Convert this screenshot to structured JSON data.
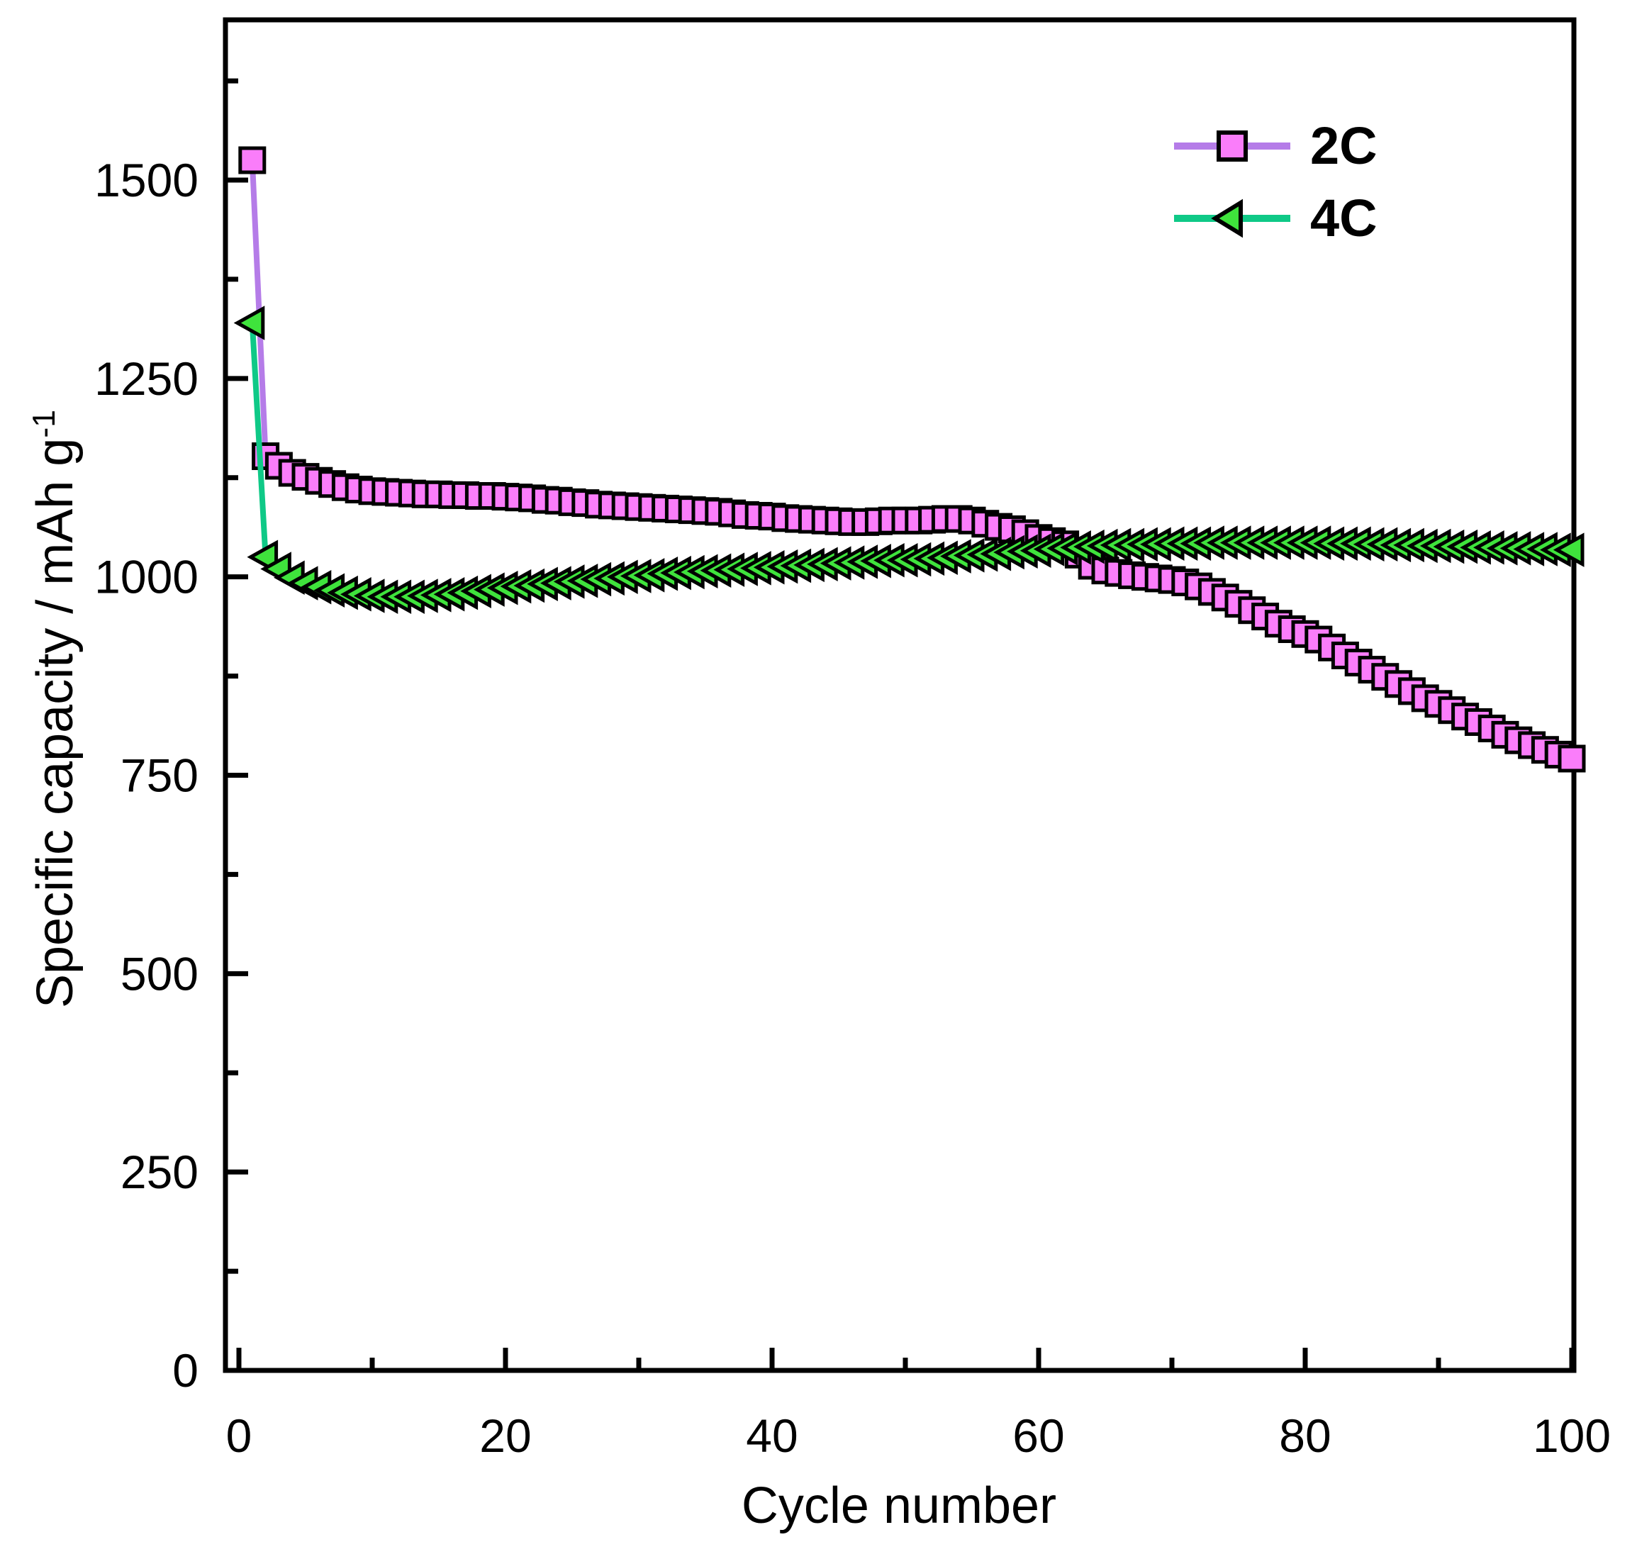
{
  "chart_data": {
    "type": "line",
    "title": "",
    "xlabel": "Cycle number",
    "ylabel_main": "Specific capacity / mAh g",
    "ylabel_exponent": "-1",
    "grid": false,
    "legend_position": "top-right-inside",
    "xlim": [
      0,
      100
    ],
    "ylim": [
      0,
      1702
    ],
    "x_start": 1,
    "x_major_ticks": [
      {
        "v": 0,
        "label": "0"
      },
      {
        "v": 20,
        "label": "20"
      },
      {
        "v": 40,
        "label": "40"
      },
      {
        "v": 60,
        "label": "60"
      },
      {
        "v": 80,
        "label": "80"
      },
      {
        "v": 100,
        "label": "100"
      }
    ],
    "x_minor_ticks": [
      10,
      30,
      50,
      70,
      90
    ],
    "y_major_ticks": [
      {
        "v": 0,
        "label": "0"
      },
      {
        "v": 250,
        "label": "250"
      },
      {
        "v": 500,
        "label": "500"
      },
      {
        "v": 750,
        "label": "750"
      },
      {
        "v": 1000,
        "label": "1000"
      },
      {
        "v": 1250,
        "label": "1250"
      },
      {
        "v": 1500,
        "label": "1500"
      }
    ],
    "y_minor_ticks": [
      125,
      375,
      625,
      875,
      1125,
      1375,
      1625
    ],
    "series": [
      {
        "name": "2C",
        "marker": "square",
        "marker_fill": "#FA7DFA",
        "marker_stroke": "#000000",
        "line_color": "#B57CE8",
        "values": [
          1525,
          1152,
          1140,
          1131,
          1126,
          1121,
          1117,
          1113,
          1110,
          1108,
          1107,
          1106,
          1105,
          1104,
          1104,
          1103,
          1103,
          1102,
          1102,
          1101,
          1100,
          1099,
          1097,
          1096,
          1094,
          1093,
          1091,
          1090,
          1089,
          1088,
          1087,
          1086,
          1085,
          1084,
          1083,
          1082,
          1080,
          1078,
          1077,
          1076,
          1074,
          1073,
          1072,
          1071,
          1070,
          1069,
          1069,
          1070,
          1071,
          1071,
          1071,
          1072,
          1073,
          1073,
          1071,
          1067,
          1063,
          1060,
          1055,
          1049,
          1045,
          1041,
          1028,
          1014,
          1008,
          1005,
          1002,
          1000,
          998,
          996,
          993,
          988,
          981,
          974,
          966,
          958,
          950,
          941,
          934,
          928,
          921,
          911,
          901,
          892,
          883,
          874,
          865,
          856,
          847,
          840,
          832,
          824,
          817,
          809,
          801,
          794,
          788,
          782,
          776,
          771
        ]
      },
      {
        "name": "4C",
        "marker": "triangle-left",
        "marker_fill": "#3FE33C",
        "marker_stroke": "#000000",
        "line_color": "#0FC987",
        "values": [
          1320,
          1025,
          1010,
          999,
          992,
          987,
          983,
          980,
          978,
          976,
          975,
          975,
          975,
          976,
          977,
          978,
          980,
          982,
          984,
          986,
          988,
          989,
          991,
          992,
          994,
          995,
          997,
          998,
          1000,
          1001,
          1002,
          1004,
          1005,
          1006,
          1007,
          1008,
          1009,
          1010,
          1011,
          1012,
          1013,
          1014,
          1015,
          1016,
          1017,
          1018,
          1019,
          1020,
          1021,
          1021,
          1022,
          1023,
          1024,
          1026,
          1027,
          1028,
          1029,
          1031,
          1032,
          1033,
          1035,
          1036,
          1037,
          1038,
          1039,
          1040,
          1040,
          1041,
          1041,
          1042,
          1042,
          1042,
          1043,
          1043,
          1043,
          1043,
          1043,
          1043,
          1043,
          1043,
          1043,
          1042,
          1042,
          1042,
          1041,
          1041,
          1040,
          1040,
          1039,
          1039,
          1038,
          1038,
          1037,
          1037,
          1036,
          1036,
          1035,
          1035,
          1034,
          1034
        ]
      }
    ]
  },
  "legend": {
    "items": [
      {
        "label": "2C"
      },
      {
        "label": "4C"
      }
    ]
  },
  "colors": {
    "background": "#ffffff",
    "axis": "#000000",
    "text": "#000000",
    "series_2c_line": "#B57CE8",
    "series_2c_fill": "#FA7DFA",
    "series_4c_line": "#0FC987",
    "series_4c_fill": "#3FE33C"
  }
}
